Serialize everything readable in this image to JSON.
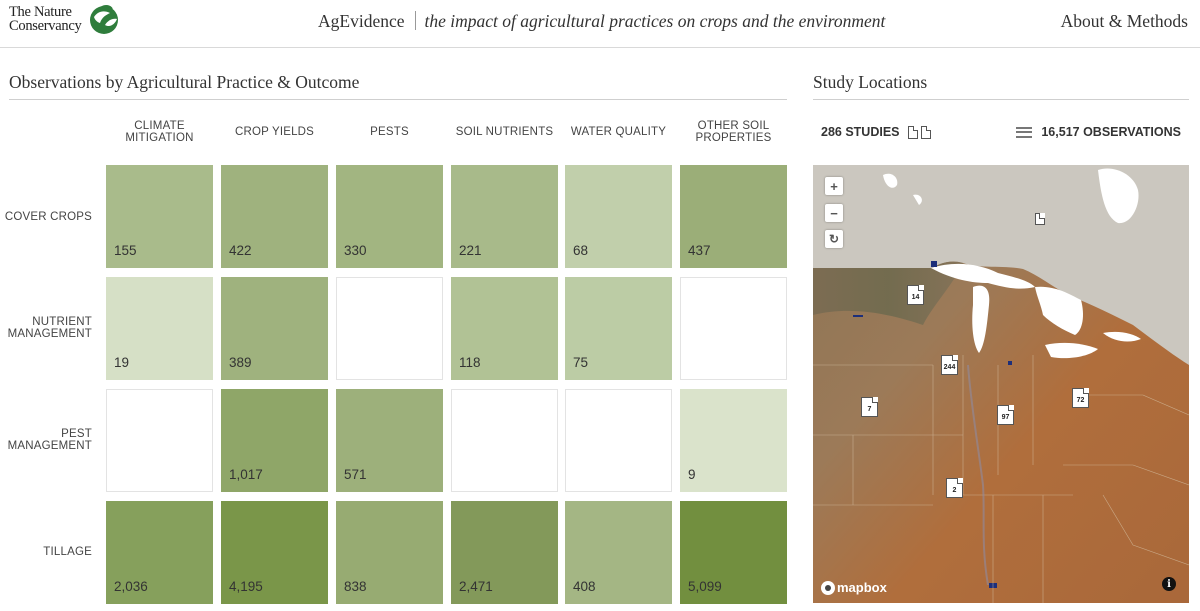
{
  "header": {
    "logo_line1": "The Nature",
    "logo_line2": "Conservancy",
    "app_name": "AgEvidence",
    "tagline": "the impact of agricultural practices on crops and the environment",
    "about_link": "About & Methods"
  },
  "matrix": {
    "title": "Observations by Agricultural Practice & Outcome",
    "columns": [
      "CLIMATE MITIGATION",
      "CROP YIELDS",
      "PESTS",
      "SOIL NUTRIENTS",
      "WATER QUALITY",
      "OTHER SOIL PROPERTIES"
    ],
    "rows": [
      {
        "label": "COVER CROPS",
        "values": [
          "155",
          "422",
          "330",
          "221",
          "68",
          "437"
        ],
        "colors": [
          "#a9bb8b",
          "#9fb27e",
          "#a2b581",
          "#a8ba8a",
          "#c1cfab",
          "#9bae78"
        ]
      },
      {
        "label": "NUTRIENT MANAGEMENT",
        "values": [
          "19",
          "389",
          "",
          "118",
          "75",
          ""
        ],
        "colors": [
          "#d6e0c6",
          "#9fb27e",
          "#ffffff",
          "#b1c295",
          "#bccca5",
          "#ffffff"
        ]
      },
      {
        "label": "PEST MANAGEMENT",
        "values": [
          "",
          "1,017",
          "571",
          "",
          "",
          "9"
        ],
        "colors": [
          "#ffffff",
          "#8fa668",
          "#9db07b",
          "#ffffff",
          "#ffffff",
          "#dae3cb"
        ]
      },
      {
        "label": "TILLAGE",
        "values": [
          "2,036",
          "4,195",
          "838",
          "2,471",
          "408",
          "5,099"
        ],
        "colors": [
          "#86a05c",
          "#7a9649",
          "#97ab72",
          "#83995a",
          "#a4b684",
          "#728f3f"
        ]
      }
    ]
  },
  "locations": {
    "title": "Study Locations",
    "studies": "286 STUDIES",
    "observations": "16,517 OBSERVATIONS",
    "zoom_in": "+",
    "zoom_out": "−",
    "reset": "↻",
    "markers": [
      "14",
      "244",
      "7",
      "97",
      "72",
      "2",
      ""
    ],
    "attribution": "mapbox",
    "info": "i"
  }
}
